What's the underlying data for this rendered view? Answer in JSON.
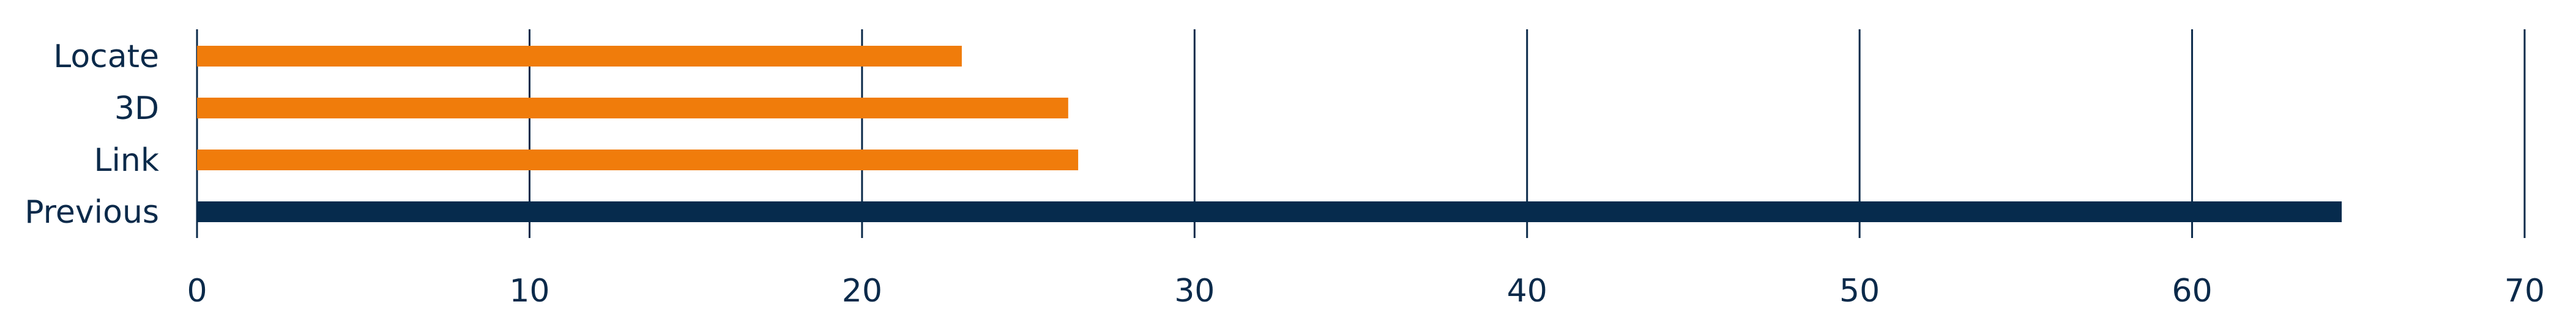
{
  "chart_data": {
    "type": "bar",
    "orientation": "horizontal",
    "categories": [
      "Locate",
      "3D",
      "Link",
      "Previous"
    ],
    "values": [
      23,
      26.2,
      26.5,
      64.5
    ],
    "xlim": [
      0,
      70
    ],
    "xticks": [
      "0",
      "10",
      "20",
      "30",
      "40",
      "50",
      "60",
      "70"
    ],
    "grid": "vertical",
    "colors": {
      "highlight": "#f07c0b",
      "baseline": "#062b4d",
      "grid": "#0b2a4a",
      "text": "#0b2a4a"
    },
    "bar_colors": [
      "#f07c0b",
      "#f07c0b",
      "#f07c0b",
      "#062b4d"
    ]
  }
}
